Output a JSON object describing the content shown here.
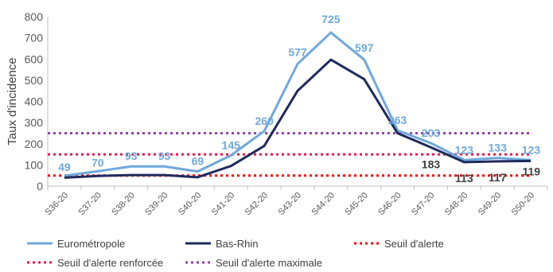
{
  "chart_data": {
    "type": "line",
    "ylabel": "Taux d'incidence",
    "ylim": [
      0,
      800
    ],
    "yticks": [
      0,
      100,
      200,
      300,
      400,
      500,
      600,
      700,
      800
    ],
    "categories": [
      "S36-20",
      "S37-20",
      "S38-20",
      "S39-20",
      "S40-20",
      "S41-20",
      "S42-20",
      "S43-20",
      "S44-20",
      "S45-20",
      "S46-20",
      "S47-20",
      "S48-20",
      "S49-20",
      "S50-20"
    ],
    "series": [
      {
        "name": "Eurométropole",
        "color": "#6fa8dc",
        "values": [
          49,
          70,
          93,
          93,
          69,
          145,
          260,
          577,
          725,
          597,
          263,
          203,
          123,
          133,
          123
        ],
        "labels": [
          "49",
          "70",
          "93",
          "93",
          "69",
          "145",
          "260",
          "577",
          "725",
          "597",
          "263",
          "203",
          "123",
          "133",
          "123"
        ]
      },
      {
        "name": "Bas-Rhin",
        "color": "#1f2a5e",
        "values": [
          40,
          48,
          52,
          52,
          42,
          95,
          190,
          450,
          597,
          505,
          250,
          183,
          113,
          117,
          119
        ],
        "labels": [
          "183",
          "113",
          "117",
          "119"
        ],
        "label_indices": [
          11,
          12,
          13,
          14
        ]
      }
    ],
    "thresholds": [
      {
        "name": "Seuil d'alerte",
        "value": 50,
        "color": "#ff0000"
      },
      {
        "name": "Seuil d'alerte renforcée",
        "value": 150,
        "color": "#e8174a"
      },
      {
        "name": "Seuil d'alerte maximale",
        "value": 250,
        "color": "#8e44ad"
      }
    ],
    "legend_position": "bottom"
  }
}
